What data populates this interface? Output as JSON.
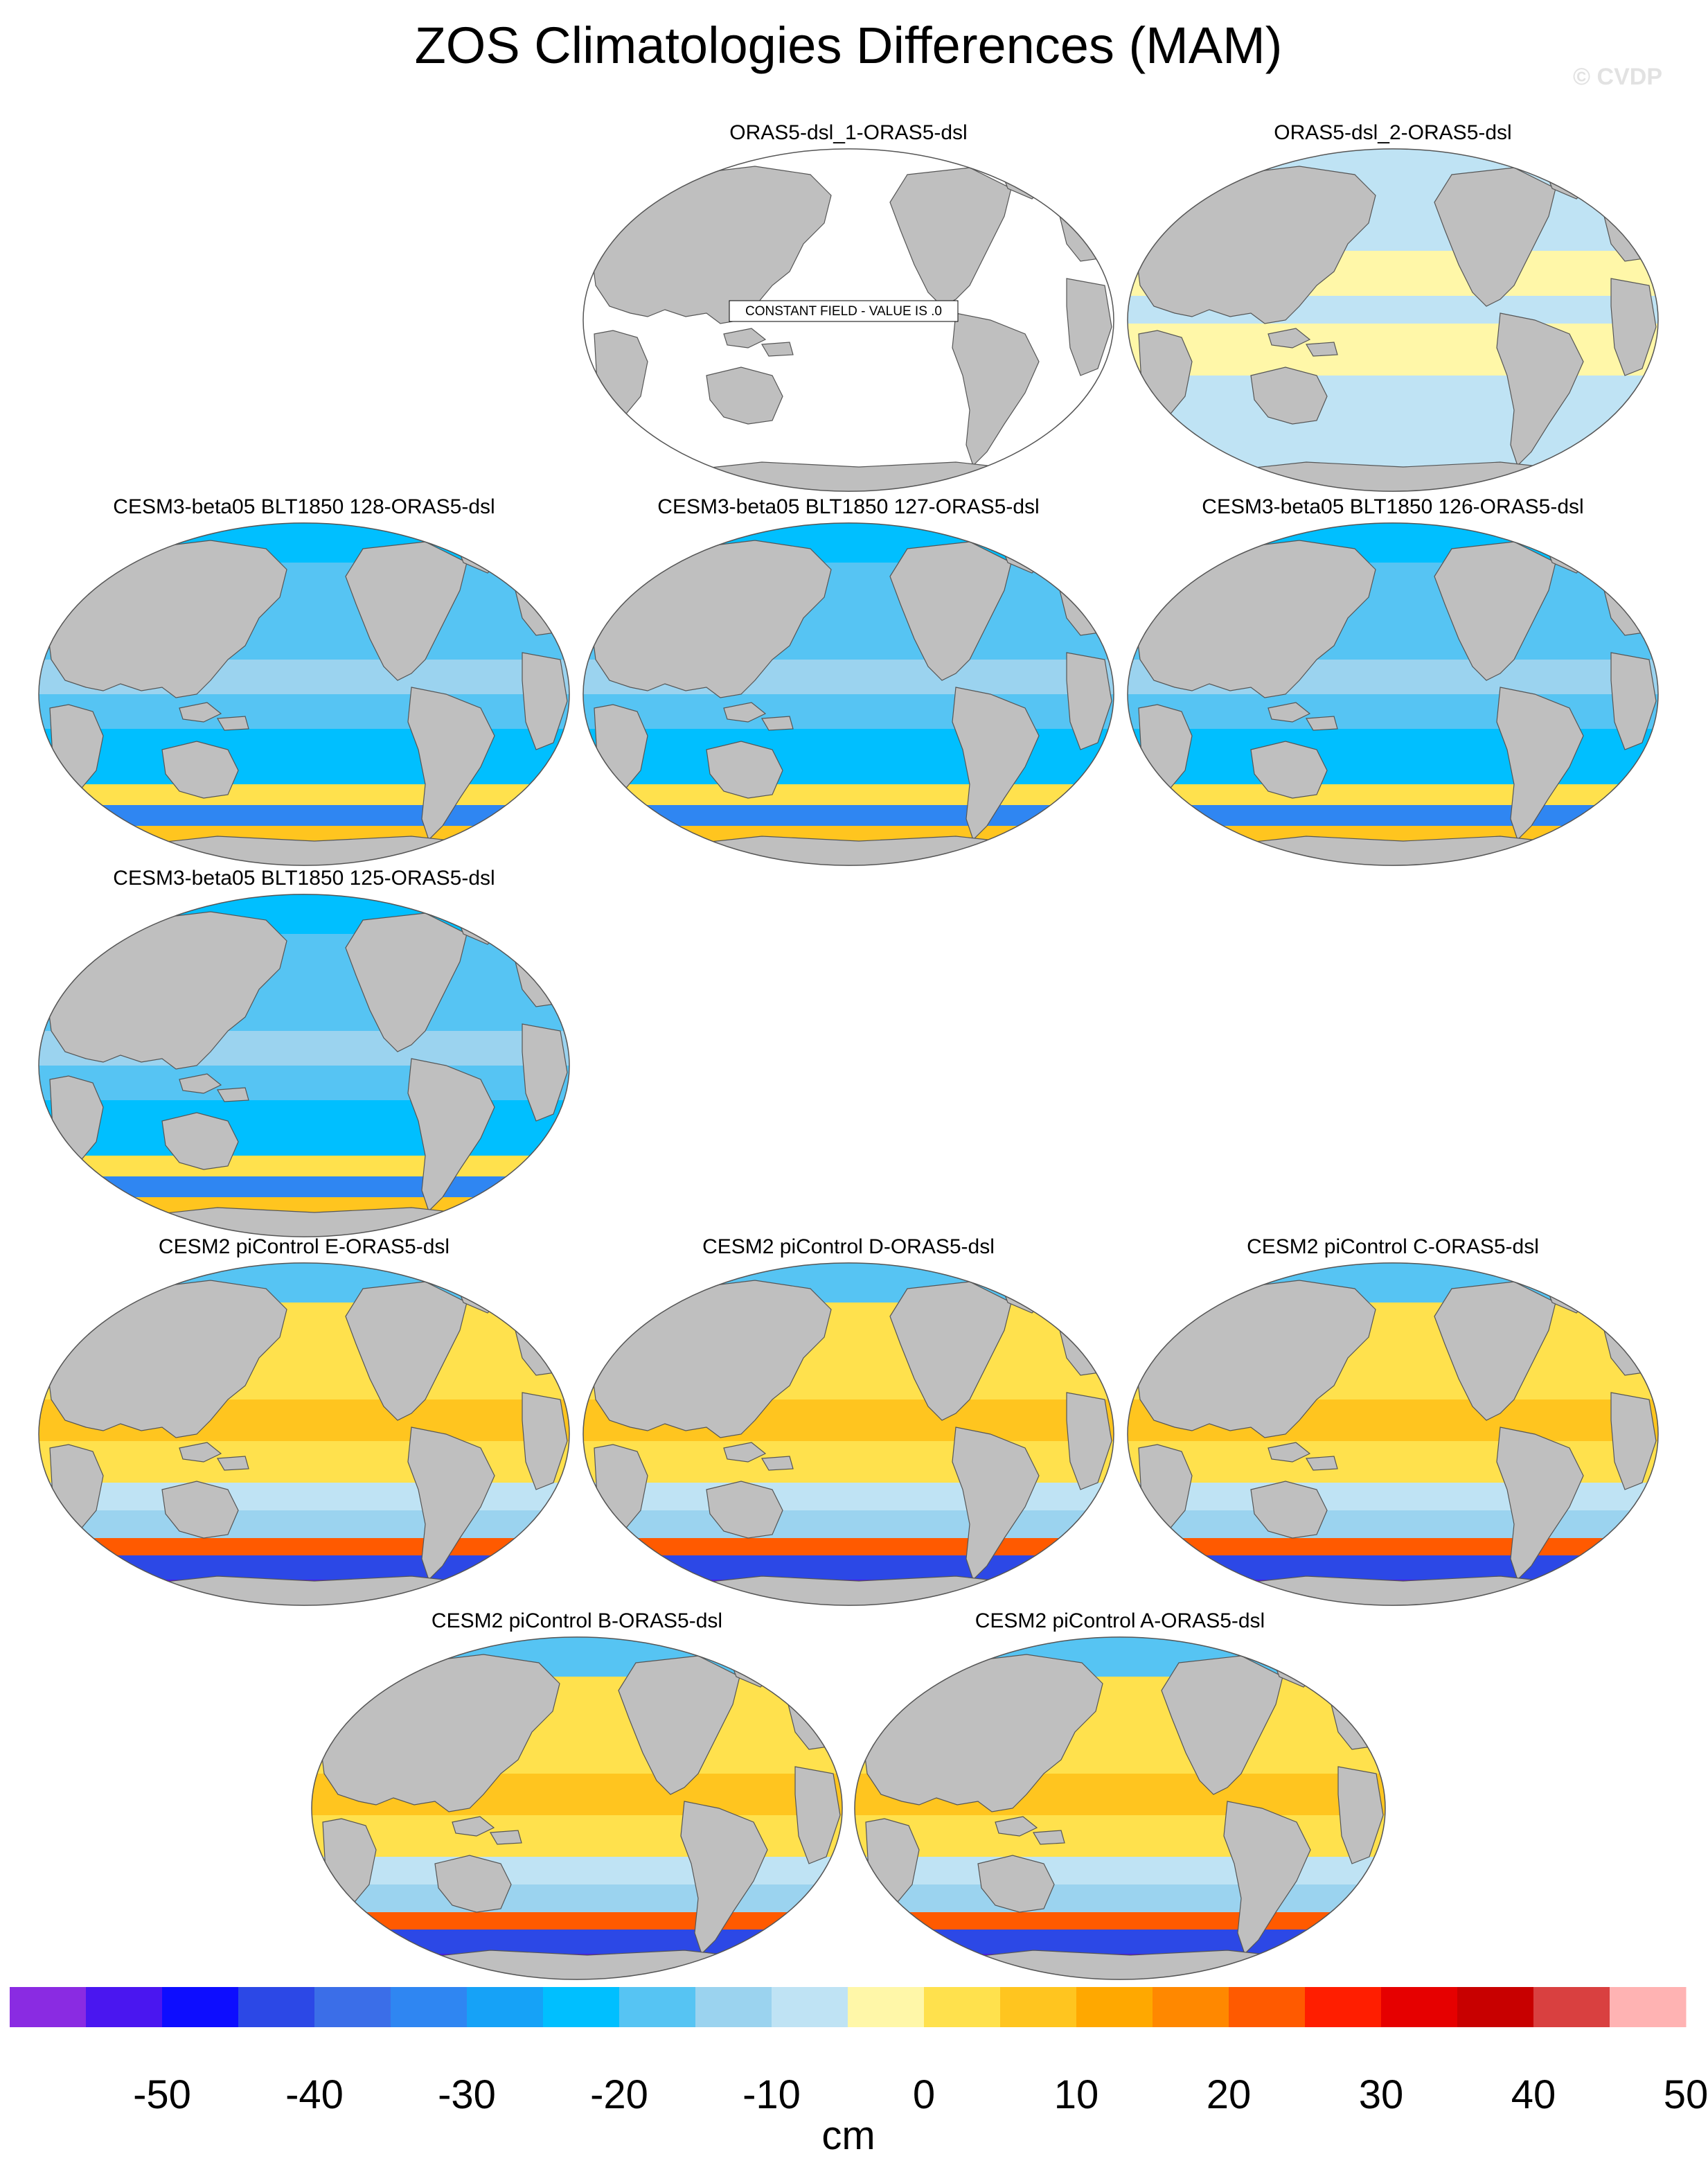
{
  "figure": {
    "title": "ZOS Climatologies Differences (MAM)",
    "watermark": "© CVDP"
  },
  "panels": [
    {
      "title": "ORAS5-dsl_1-ORAS5-dsl",
      "style": "constant",
      "note": "CONSTANT FIELD - VALUE IS .0"
    },
    {
      "title": "ORAS5-dsl_2-ORAS5-dsl",
      "style": "oras"
    },
    {
      "title": "CESM3-beta05 BLT1850 128-ORAS5-dsl",
      "style": "cesm3"
    },
    {
      "title": "CESM3-beta05 BLT1850 127-ORAS5-dsl",
      "style": "cesm3"
    },
    {
      "title": "CESM3-beta05 BLT1850 126-ORAS5-dsl",
      "style": "cesm3"
    },
    {
      "title": "CESM3-beta05 BLT1850 125-ORAS5-dsl",
      "style": "cesm3"
    },
    {
      "title": "CESM2 piControl E-ORAS5-dsl",
      "style": "cesm2"
    },
    {
      "title": "CESM2 piControl D-ORAS5-dsl",
      "style": "cesm2"
    },
    {
      "title": "CESM2 piControl C-ORAS5-dsl",
      "style": "cesm2"
    },
    {
      "title": "CESM2 piControl B-ORAS5-dsl",
      "style": "cesm2"
    },
    {
      "title": "CESM2 piControl A-ORAS5-dsl",
      "style": "cesm2"
    }
  ],
  "colorbar": {
    "units": "cm",
    "tick_labels": [
      "-50",
      "-40",
      "-30",
      "-20",
      "-10",
      "0",
      "10",
      "20",
      "30",
      "40",
      "50"
    ],
    "colors": [
      "#8a2be2",
      "#4a16f0",
      "#0d0dff",
      "#2c48e6",
      "#3b6ee8",
      "#2f86f2",
      "#16a2f7",
      "#00bfff",
      "#56c4f3",
      "#9bd3ef",
      "#bfe3f4",
      "#fff7a8",
      "#ffe14d",
      "#ffc51f",
      "#ffa800",
      "#ff8800",
      "#ff5a00",
      "#ff1e00",
      "#e60000",
      "#c80000",
      "#d94040",
      "#ffb3b3"
    ]
  },
  "map_colors": {
    "land": "#bfbfbf",
    "constant_ocean": "#ffffff",
    "oras_light_blue": "#bfe3f4",
    "oras_pale_yellow": "#fff7a8"
  }
}
